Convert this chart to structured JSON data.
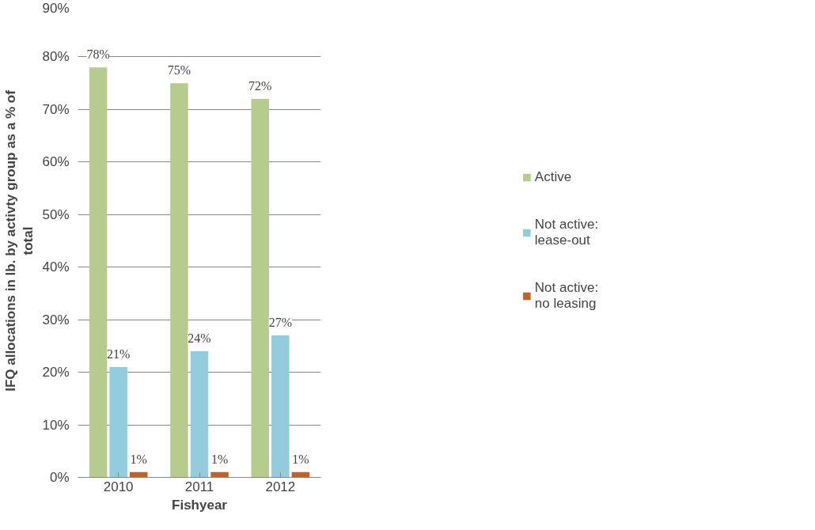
{
  "chart_data": {
    "type": "bar",
    "xlabel": "Fishyear",
    "ylabel": "IFQ allocations in lb. by activty group as a % of\ntotal",
    "categories": [
      "2010",
      "2011",
      "2012"
    ],
    "series": [
      {
        "name": "Active",
        "color": "#b5cc8e",
        "values": [
          78,
          75,
          72
        ],
        "value_labels": [
          "78%",
          "75%",
          "72%"
        ]
      },
      {
        "name": "Not active:\nlease-out",
        "color": "#93cddd",
        "values": [
          21,
          24,
          27
        ],
        "value_labels": [
          "21%",
          "24%",
          "27%"
        ]
      },
      {
        "name": "Not active:\nno leasing",
        "color": "#c0622c",
        "values": [
          1,
          1,
          1
        ],
        "value_labels": [
          "1%",
          "1%",
          "1%"
        ]
      }
    ],
    "ylim": [
      0,
      90
    ],
    "yticks": [
      {
        "value": 0,
        "label": "0%"
      },
      {
        "value": 10,
        "label": "10%"
      },
      {
        "value": 20,
        "label": "20%"
      },
      {
        "value": 30,
        "label": "30%"
      },
      {
        "value": 40,
        "label": "40%"
      },
      {
        "value": 50,
        "label": "50%"
      },
      {
        "value": 60,
        "label": "60%"
      },
      {
        "value": 70,
        "label": "70%"
      },
      {
        "value": 80,
        "label": "80%"
      },
      {
        "value": 90,
        "label": "90%"
      }
    ],
    "grid": "y",
    "legend": "right"
  }
}
